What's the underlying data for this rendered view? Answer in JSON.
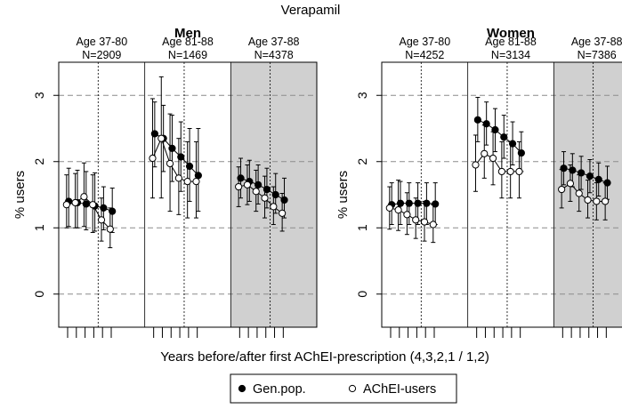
{
  "chart_data": {
    "type": "line",
    "title": "Verapamil",
    "xlabel": "Years before/after first AChEI-prescription (4,3,2,1 / 1,2)",
    "ylabel": "% users",
    "ylim": [
      -0.5,
      3.5
    ],
    "yticks": [
      "0",
      "1",
      "2",
      "3"
    ],
    "grid": true,
    "legend": {
      "position": "bottom",
      "entries": [
        {
          "label": "Gen.pop.",
          "marker": "filled-circle"
        },
        {
          "label": "AChEI-users",
          "marker": "open-circle"
        }
      ]
    },
    "x_periods": [
      "-4",
      "-3",
      "-2",
      "-1",
      "+1",
      "+2"
    ],
    "panels": [
      {
        "title": "Men",
        "groups": [
          {
            "label_age": "Age 37-80",
            "label_n": "N=2909",
            "shaded": false,
            "series": [
              {
                "name": "Gen.pop.",
                "values": [
                  1.4,
                  1.38,
                  1.36,
                  1.33,
                  1.3,
                  1.25
                ],
                "lower": [
                  1.02,
                  1.0,
                  0.97,
                  0.95,
                  0.97,
                  0.93
                ],
                "upper": [
                  1.9,
                  1.87,
                  1.85,
                  1.83,
                  1.62,
                  1.6
                ]
              },
              {
                "name": "AChEI-users",
                "values": [
                  1.35,
                  1.38,
                  1.47,
                  1.35,
                  1.12,
                  0.98
                ],
                "lower": [
                  1.0,
                  1.0,
                  1.02,
                  0.93,
                  0.8,
                  0.7
                ],
                "upper": [
                  1.8,
                  1.82,
                  1.98,
                  1.8,
                  1.45,
                  1.3
                ]
              }
            ]
          },
          {
            "label_age": "Age 81-88",
            "label_n": "N=1469",
            "shaded": false,
            "series": [
              {
                "name": "Gen.pop.",
                "values": [
                  2.42,
                  2.35,
                  2.2,
                  2.07,
                  1.93,
                  1.79
                ],
                "lower": [
                  1.92,
                  1.85,
                  1.7,
                  1.55,
                  1.4,
                  1.25
                ],
                "upper": [
                  2.9,
                  2.85,
                  2.7,
                  2.6,
                  2.5,
                  2.5
                ]
              },
              {
                "name": "AChEI-users",
                "values": [
                  2.05,
                  2.35,
                  1.97,
                  1.75,
                  1.7,
                  1.7
                ],
                "lower": [
                  1.45,
                  1.45,
                  1.25,
                  1.2,
                  1.15,
                  1.15
                ],
                "upper": [
                  2.95,
                  3.28,
                  2.72,
                  2.35,
                  2.3,
                  2.3
                ]
              }
            ]
          },
          {
            "label_age": "Age 37-88",
            "label_n": "N=4378",
            "shaded": true,
            "series": [
              {
                "name": "Gen.pop.",
                "values": [
                  1.75,
                  1.7,
                  1.65,
                  1.58,
                  1.5,
                  1.42
                ],
                "lower": [
                  1.45,
                  1.4,
                  1.36,
                  1.3,
                  1.22,
                  1.15
                ],
                "upper": [
                  2.05,
                  2.02,
                  1.95,
                  1.9,
                  1.82,
                  1.75
                ]
              },
              {
                "name": "AChEI-users",
                "values": [
                  1.62,
                  1.65,
                  1.55,
                  1.45,
                  1.32,
                  1.22
                ],
                "lower": [
                  1.32,
                  1.35,
                  1.25,
                  1.15,
                  1.05,
                  0.95
                ],
                "upper": [
                  1.92,
                  1.95,
                  1.87,
                  1.78,
                  1.62,
                  1.52
                ]
              }
            ]
          }
        ]
      },
      {
        "title": "Women",
        "groups": [
          {
            "label_age": "Age 37-80",
            "label_n": "N=4252",
            "shaded": false,
            "series": [
              {
                "name": "Gen.pop.",
                "values": [
                  1.35,
                  1.37,
                  1.37,
                  1.37,
                  1.37,
                  1.36
                ],
                "lower": [
                  1.05,
                  1.05,
                  1.05,
                  1.05,
                  1.05,
                  1.05
                ],
                "upper": [
                  1.68,
                  1.7,
                  1.68,
                  1.68,
                  1.68,
                  1.68
                ]
              },
              {
                "name": "AChEI-users",
                "values": [
                  1.3,
                  1.27,
                  1.2,
                  1.12,
                  1.09,
                  1.05
                ],
                "lower": [
                  0.98,
                  0.96,
                  0.9,
                  0.84,
                  0.8,
                  0.78
                ],
                "upper": [
                  1.62,
                  1.72,
                  1.53,
                  1.45,
                  1.4,
                  1.35
                ]
              }
            ]
          },
          {
            "label_age": "Age 81-88",
            "label_n": "N=3134",
            "shaded": false,
            "series": [
              {
                "name": "Gen.pop.",
                "values": [
                  2.63,
                  2.57,
                  2.48,
                  2.37,
                  2.27,
                  2.13
                ],
                "lower": [
                  2.3,
                  2.25,
                  2.15,
                  2.05,
                  1.95,
                  1.85
                ],
                "upper": [
                  2.97,
                  2.9,
                  2.8,
                  2.7,
                  2.6,
                  2.45
                ]
              },
              {
                "name": "AChEI-users",
                "values": [
                  1.95,
                  2.12,
                  2.05,
                  1.85,
                  1.85,
                  1.85
                ],
                "lower": [
                  1.55,
                  1.75,
                  1.65,
                  1.45,
                  1.45,
                  1.45
                ],
                "upper": [
                  2.4,
                  2.55,
                  2.45,
                  2.3,
                  2.3,
                  2.3
                ]
              }
            ]
          },
          {
            "label_age": "Age 37-88",
            "label_n": "N=7386",
            "shaded": true,
            "series": [
              {
                "name": "Gen.pop.",
                "values": [
                  1.9,
                  1.87,
                  1.83,
                  1.78,
                  1.73,
                  1.68
                ],
                "lower": [
                  1.65,
                  1.62,
                  1.58,
                  1.53,
                  1.48,
                  1.43
                ],
                "upper": [
                  2.15,
                  2.12,
                  2.08,
                  2.03,
                  1.98,
                  1.93
                ]
              },
              {
                "name": "AChEI-users",
                "values": [
                  1.58,
                  1.67,
                  1.52,
                  1.42,
                  1.4,
                  1.4
                ],
                "lower": [
                  1.3,
                  1.4,
                  1.25,
                  1.15,
                  1.12,
                  1.12
                ],
                "upper": [
                  1.88,
                  1.95,
                  1.8,
                  1.72,
                  1.68,
                  1.68
                ]
              }
            ]
          }
        ]
      }
    ]
  }
}
